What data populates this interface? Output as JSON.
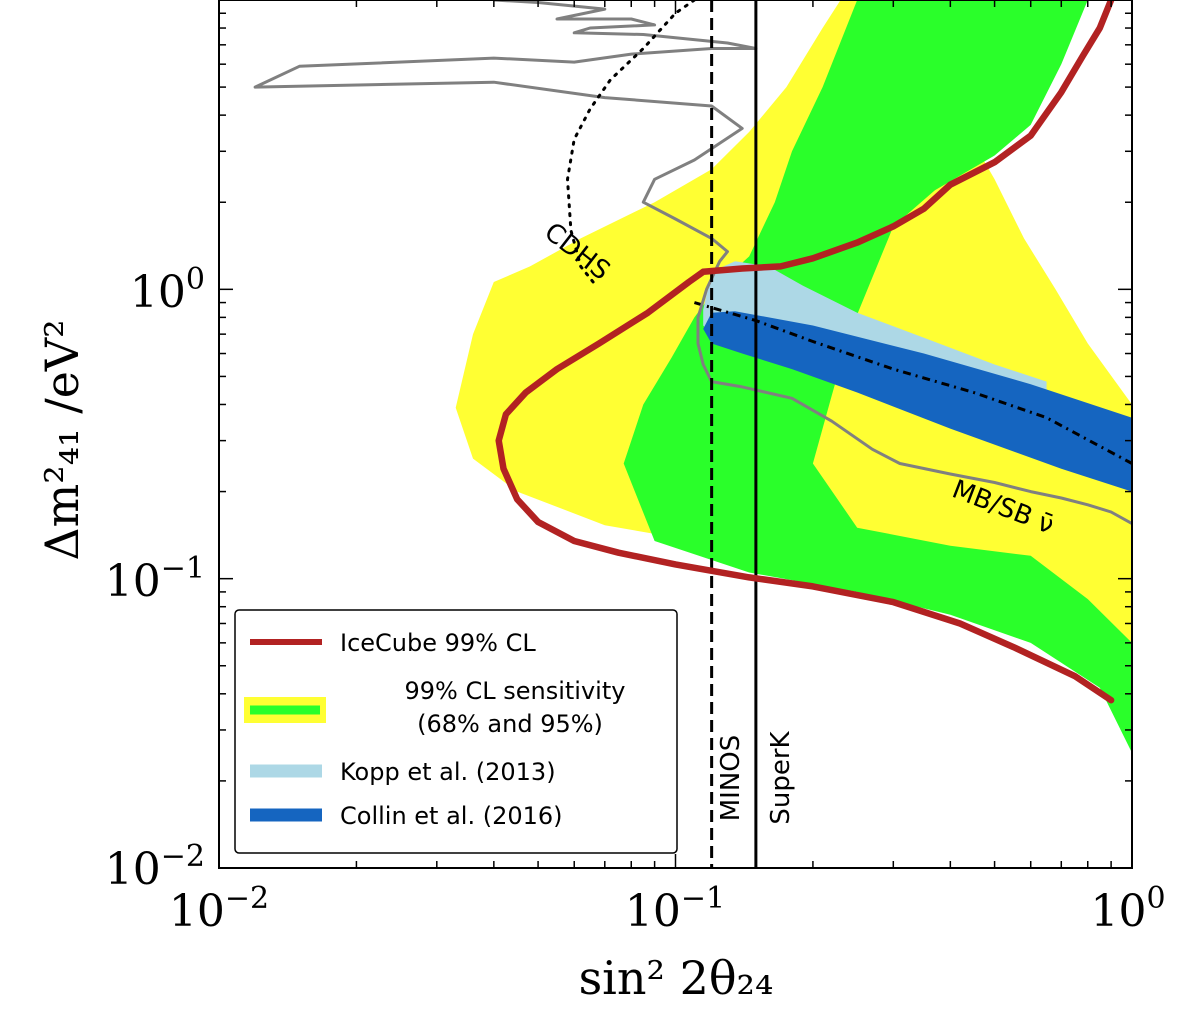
{
  "chart_data": {
    "type": "line",
    "title": "",
    "xlabel": "sin² 2θ₂₄",
    "ylabel": "Δm²₄₁ /eV²",
    "xscale": "log",
    "yscale": "log",
    "xlim": [
      0.01,
      1.0
    ],
    "ylim": [
      0.01,
      10.0
    ],
    "x_ticks": [
      {
        "value": 0.01,
        "base": "10",
        "exp": "−2"
      },
      {
        "value": 0.1,
        "base": "10",
        "exp": "−1"
      },
      {
        "value": 1.0,
        "base": "10",
        "exp": "0"
      }
    ],
    "y_ticks": [
      {
        "value": 0.01,
        "base": "10",
        "exp": "−2"
      },
      {
        "value": 0.1,
        "base": "10",
        "exp": "−1"
      },
      {
        "value": 1.0,
        "base": "10",
        "exp": "0"
      }
    ],
    "grid": false,
    "legend_placement": "lower-left",
    "colors": {
      "icecube": "#b22222",
      "band95": "#ffff33",
      "band68": "#2aff2a",
      "kopp": "#add8e6",
      "collin": "#1565c0",
      "mbsb": "#808080",
      "axes": "#000000"
    },
    "legend": {
      "icecube": "IceCube 99% CL",
      "sensitivity_line1": "99% CL sensitivity",
      "sensitivity_line2": "(68% and 95%)",
      "kopp": "Kopp et al. (2013)",
      "collin": "Collin et al. (2016)"
    },
    "annotations": {
      "cdhs": "CDHS",
      "mbsb": "MB/SB ν̄",
      "minos": "MINOS",
      "superk": "SuperK"
    },
    "series": [
      {
        "name": "IceCube 99% CL",
        "kind": "line",
        "points": [
          [
            0.9,
            0.038
          ],
          [
            0.75,
            0.046
          ],
          [
            0.55,
            0.058
          ],
          [
            0.42,
            0.07
          ],
          [
            0.3,
            0.083
          ],
          [
            0.2,
            0.094
          ],
          [
            0.145,
            0.101
          ],
          [
            0.1,
            0.112
          ],
          [
            0.075,
            0.123
          ],
          [
            0.06,
            0.135
          ],
          [
            0.05,
            0.157
          ],
          [
            0.045,
            0.188
          ],
          [
            0.042,
            0.24
          ],
          [
            0.041,
            0.3
          ],
          [
            0.0425,
            0.37
          ],
          [
            0.047,
            0.44
          ],
          [
            0.055,
            0.53
          ],
          [
            0.068,
            0.65
          ],
          [
            0.087,
            0.83
          ],
          [
            0.107,
            1.06
          ],
          [
            0.115,
            1.15
          ],
          [
            0.14,
            1.18
          ],
          [
            0.17,
            1.2
          ],
          [
            0.2,
            1.28
          ],
          [
            0.25,
            1.45
          ],
          [
            0.3,
            1.65
          ],
          [
            0.35,
            1.9
          ],
          [
            0.4,
            2.3
          ],
          [
            0.5,
            2.75
          ],
          [
            0.6,
            3.4
          ],
          [
            0.7,
            4.8
          ],
          [
            0.78,
            6.4
          ],
          [
            0.85,
            8.0
          ],
          [
            0.9,
            10.0
          ]
        ]
      },
      {
        "name": "99% CL sensitivity (95%)",
        "kind": "band",
        "polygon": [
          [
            0.27,
            10.0
          ],
          [
            0.37,
            5.0
          ],
          [
            0.45,
            3.2
          ],
          [
            0.5,
            2.4
          ],
          [
            0.58,
            1.5
          ],
          [
            0.68,
            1.0
          ],
          [
            0.8,
            0.65
          ],
          [
            1.0,
            0.4
          ],
          [
            1.0,
            0.06
          ],
          [
            0.86,
            0.072
          ],
          [
            0.65,
            0.088
          ],
          [
            0.4,
            0.106
          ],
          [
            0.23,
            0.12
          ],
          [
            0.12,
            0.132
          ],
          [
            0.07,
            0.153
          ],
          [
            0.045,
            0.2
          ],
          [
            0.036,
            0.26
          ],
          [
            0.033,
            0.39
          ],
          [
            0.036,
            0.7
          ],
          [
            0.04,
            1.06
          ],
          [
            0.048,
            1.2
          ],
          [
            0.062,
            1.5
          ],
          [
            0.09,
            2.0
          ],
          [
            0.12,
            2.6
          ],
          [
            0.145,
            3.5
          ],
          [
            0.175,
            5.0
          ],
          [
            0.21,
            8.0
          ],
          [
            0.23,
            10.0
          ]
        ]
      },
      {
        "name": "99% CL sensitivity (68%)",
        "kind": "band",
        "polygon": [
          [
            0.8,
            10.0
          ],
          [
            0.7,
            6.0
          ],
          [
            0.6,
            3.7
          ],
          [
            0.5,
            2.9
          ],
          [
            0.37,
            2.2
          ],
          [
            0.3,
            1.65
          ],
          [
            0.27,
            1.1
          ],
          [
            0.24,
            0.7
          ],
          [
            0.22,
            0.43
          ],
          [
            0.2,
            0.25
          ],
          [
            0.25,
            0.15
          ],
          [
            0.4,
            0.13
          ],
          [
            0.6,
            0.12
          ],
          [
            0.8,
            0.085
          ],
          [
            1.0,
            0.06
          ],
          [
            1.0,
            0.025
          ],
          [
            0.85,
            0.042
          ],
          [
            0.6,
            0.06
          ],
          [
            0.4,
            0.075
          ],
          [
            0.25,
            0.09
          ],
          [
            0.145,
            0.105
          ],
          [
            0.09,
            0.135
          ],
          [
            0.077,
            0.25
          ],
          [
            0.085,
            0.4
          ],
          [
            0.098,
            0.58
          ],
          [
            0.11,
            0.8
          ],
          [
            0.125,
            1.05
          ],
          [
            0.145,
            1.3
          ],
          [
            0.165,
            2.0
          ],
          [
            0.18,
            3.0
          ],
          [
            0.21,
            5.0
          ],
          [
            0.25,
            10.0
          ]
        ]
      },
      {
        "name": "Kopp et al. (2013)",
        "kind": "band",
        "polygon": [
          [
            0.115,
            0.85
          ],
          [
            0.12,
            1.15
          ],
          [
            0.135,
            1.25
          ],
          [
            0.16,
            1.2
          ],
          [
            0.19,
            1.03
          ],
          [
            0.25,
            0.83
          ],
          [
            0.35,
            0.68
          ],
          [
            0.5,
            0.55
          ],
          [
            0.65,
            0.48
          ],
          [
            0.65,
            0.45
          ],
          [
            0.4,
            0.52
          ],
          [
            0.2,
            0.58
          ],
          [
            0.14,
            0.63
          ],
          [
            0.12,
            0.7
          ],
          [
            0.115,
            0.75
          ]
        ]
      },
      {
        "name": "Collin et al. (2016)",
        "kind": "band",
        "polygon": [
          [
            0.115,
            0.73
          ],
          [
            0.12,
            0.83
          ],
          [
            0.135,
            0.84
          ],
          [
            0.2,
            0.75
          ],
          [
            0.35,
            0.6
          ],
          [
            0.6,
            0.47
          ],
          [
            1.0,
            0.36
          ],
          [
            1.0,
            0.2
          ],
          [
            0.7,
            0.24
          ],
          [
            0.4,
            0.33
          ],
          [
            0.25,
            0.44
          ],
          [
            0.18,
            0.53
          ],
          [
            0.14,
            0.6
          ],
          [
            0.12,
            0.65
          ]
        ]
      },
      {
        "name": "Collin best fit",
        "kind": "dashdot",
        "points": [
          [
            0.11,
            0.9
          ],
          [
            0.15,
            0.78
          ],
          [
            0.2,
            0.66
          ],
          [
            0.3,
            0.53
          ],
          [
            0.45,
            0.44
          ],
          [
            0.65,
            0.36
          ],
          [
            1.0,
            0.25
          ]
        ]
      },
      {
        "name": "CDHS",
        "kind": "dotted",
        "points": [
          [
            0.066,
            1.06
          ],
          [
            0.062,
            1.2
          ],
          [
            0.059,
            1.6
          ],
          [
            0.058,
            2.4
          ],
          [
            0.06,
            3.3
          ],
          [
            0.065,
            4.2
          ],
          [
            0.072,
            5.3
          ],
          [
            0.085,
            6.8
          ],
          [
            0.1,
            9.0
          ],
          [
            0.11,
            10.0
          ]
        ]
      },
      {
        "name": "MB/SB",
        "kind": "line",
        "points": [
          [
            1.0,
            0.155
          ],
          [
            0.9,
            0.17
          ],
          [
            0.8,
            0.18
          ],
          [
            0.7,
            0.19
          ],
          [
            0.6,
            0.2
          ],
          [
            0.5,
            0.215
          ],
          [
            0.4,
            0.23
          ],
          [
            0.31,
            0.25
          ],
          [
            0.27,
            0.28
          ],
          [
            0.22,
            0.35
          ],
          [
            0.18,
            0.42
          ],
          [
            0.14,
            0.46
          ],
          [
            0.12,
            0.48
          ],
          [
            0.115,
            0.55
          ],
          [
            0.112,
            0.65
          ],
          [
            0.112,
            0.8
          ],
          [
            0.117,
            1.0
          ],
          [
            0.125,
            1.25
          ],
          [
            0.13,
            1.35
          ],
          [
            0.12,
            1.5
          ],
          [
            0.1,
            1.75
          ],
          [
            0.085,
            2.0
          ],
          [
            0.09,
            2.4
          ],
          [
            0.11,
            2.8
          ],
          [
            0.14,
            3.6
          ],
          [
            0.12,
            4.3
          ],
          [
            0.07,
            4.6
          ],
          [
            0.04,
            5.2
          ],
          [
            0.012,
            5.0
          ],
          [
            0.015,
            5.9
          ],
          [
            0.04,
            6.3
          ],
          [
            0.06,
            6.1
          ],
          [
            0.08,
            6.5
          ],
          [
            0.12,
            6.8
          ],
          [
            0.15,
            6.8
          ],
          [
            0.13,
            7.1
          ],
          [
            0.1,
            7.4
          ],
          [
            0.085,
            7.6
          ],
          [
            0.06,
            7.7
          ],
          [
            0.065,
            8.0
          ],
          [
            0.09,
            8.2
          ],
          [
            0.08,
            8.6
          ],
          [
            0.055,
            8.6
          ],
          [
            0.07,
            9.3
          ],
          [
            0.05,
            9.8
          ],
          [
            0.04,
            10.0
          ]
        ]
      },
      {
        "name": "MINOS",
        "kind": "vline-dashed",
        "x": 0.12
      },
      {
        "name": "SuperK",
        "kind": "vline",
        "x": 0.15
      }
    ]
  }
}
